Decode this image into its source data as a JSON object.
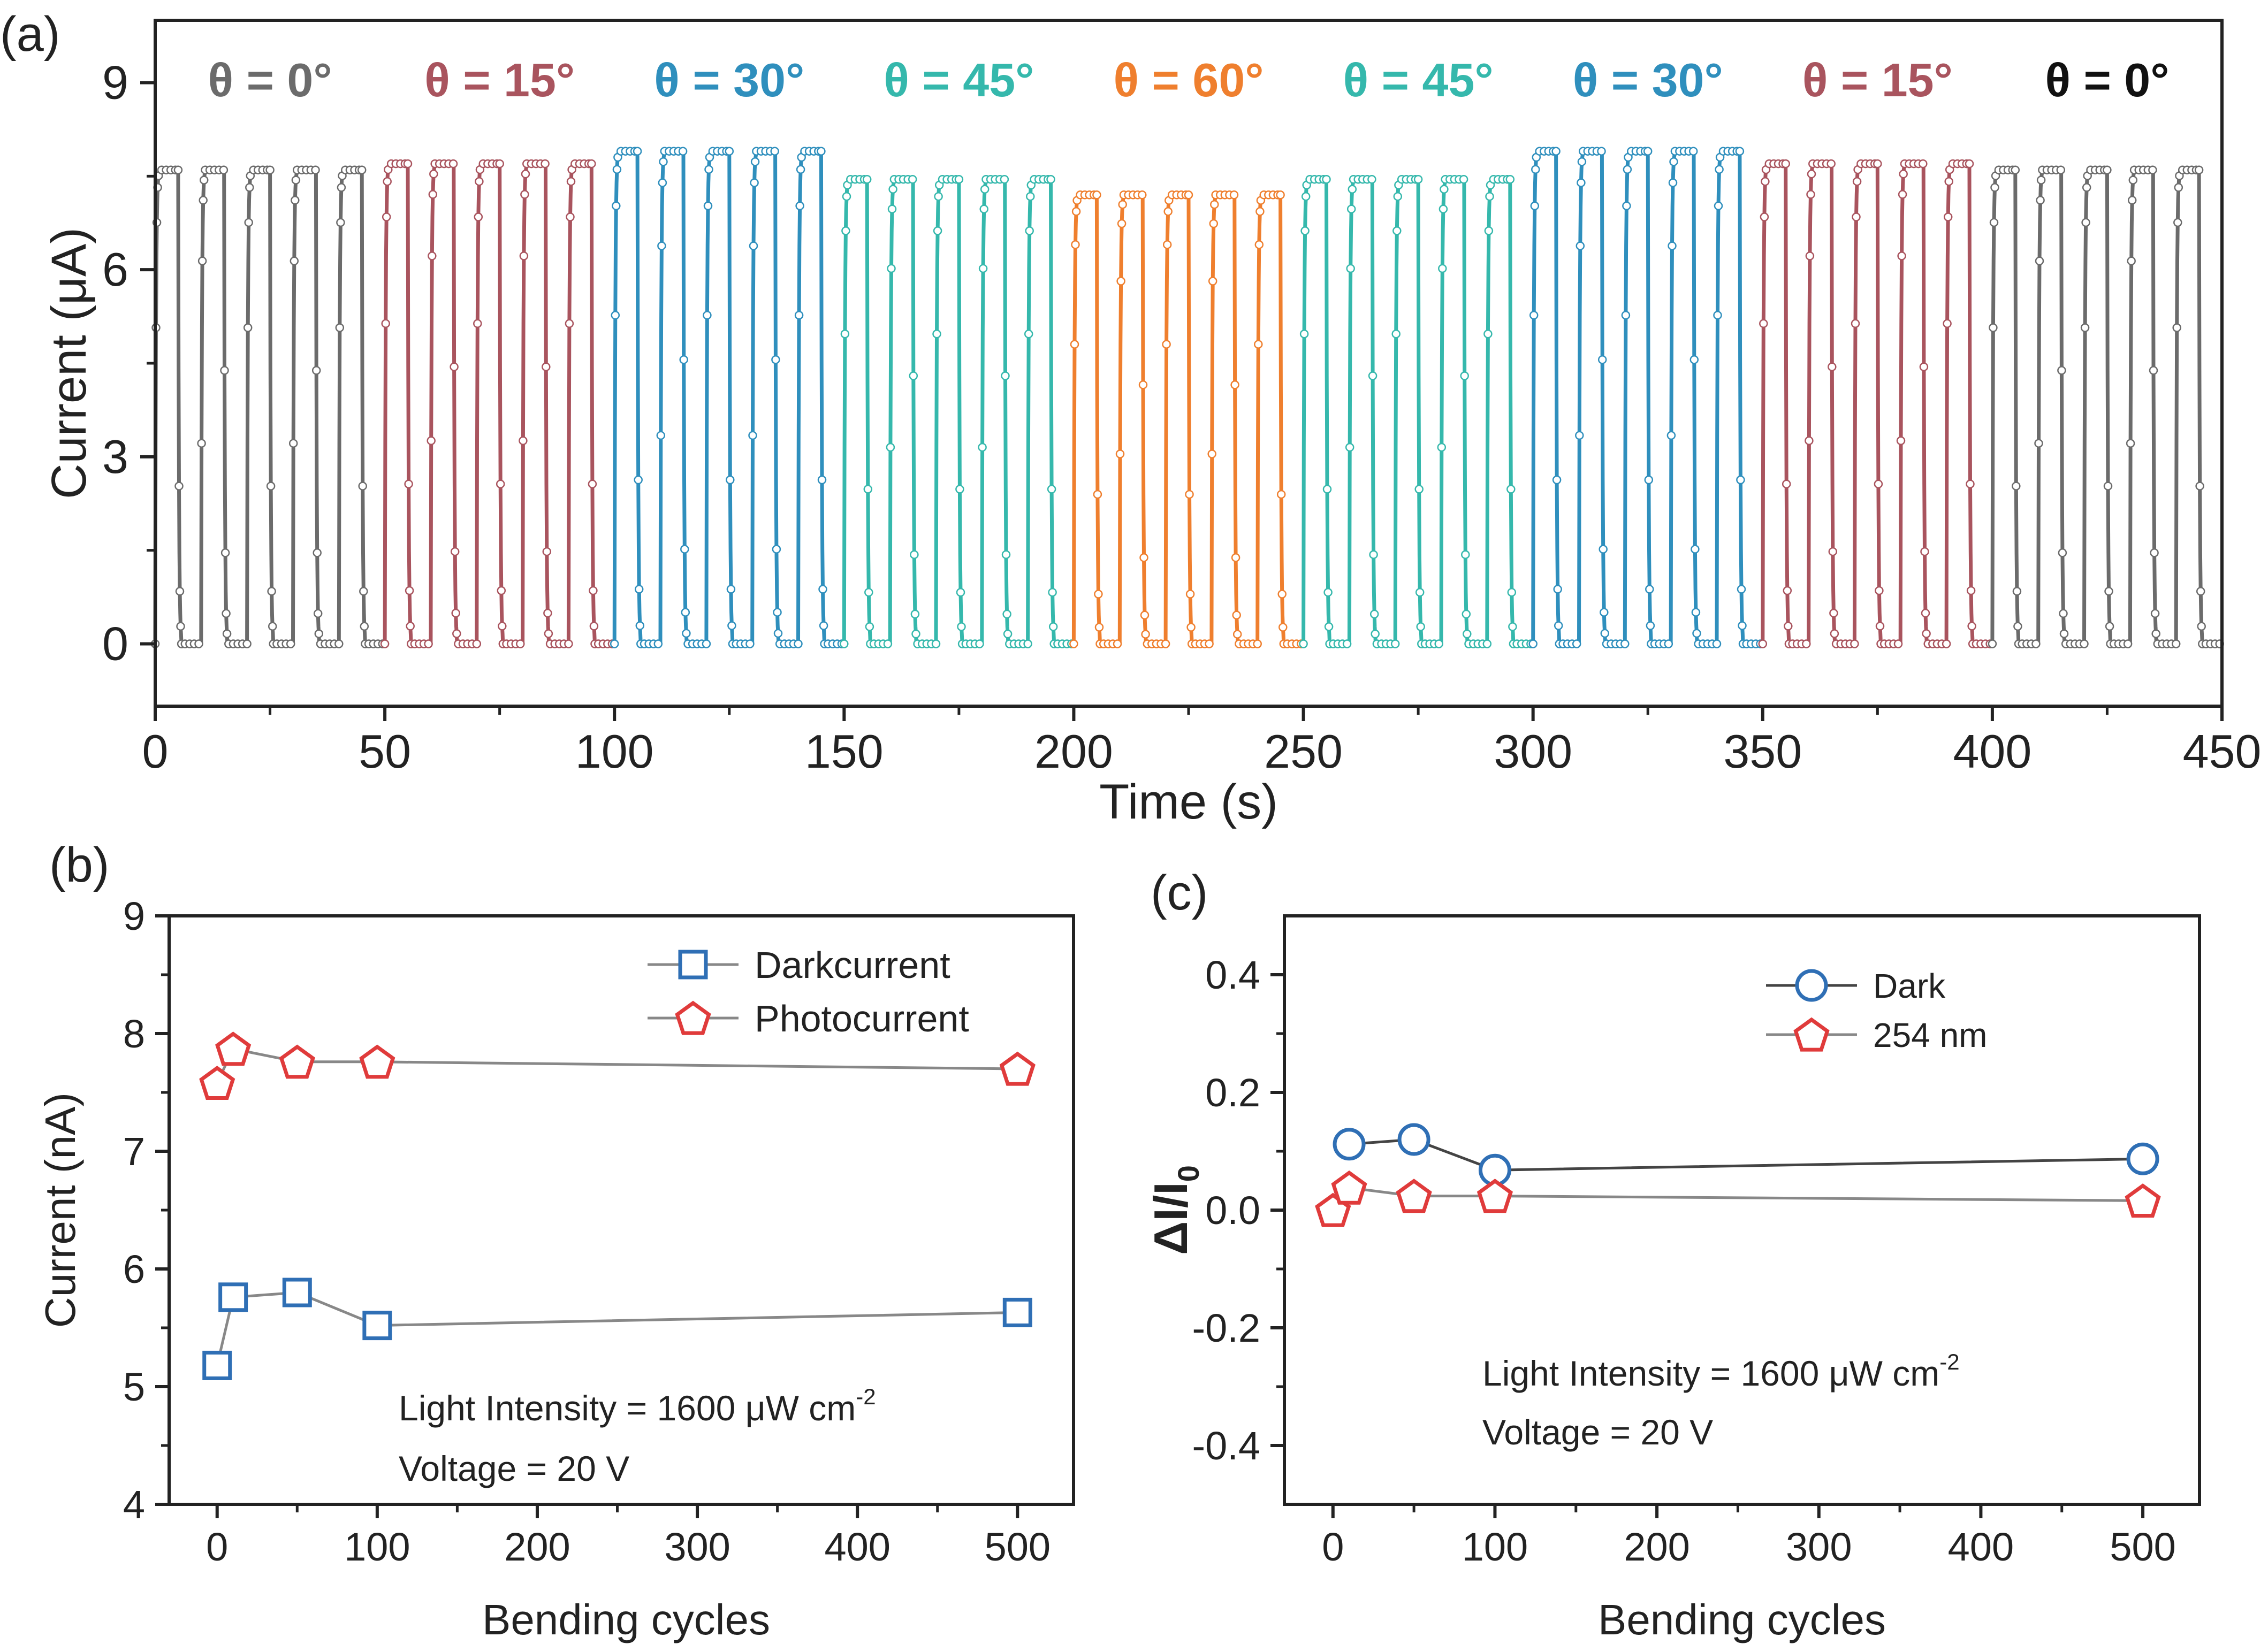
{
  "chart_data": [
    {
      "panel_label": "(a)",
      "type": "line",
      "xlabel": "Time (s)",
      "ylabel": "Current (μA)",
      "xlim": [
        0,
        450
      ],
      "ylim": [
        -1,
        10
      ],
      "xticks": [
        "0",
        "50",
        "100",
        "150",
        "200",
        "250",
        "300",
        "350",
        "400",
        "450"
      ],
      "yticks": [
        "0",
        "3",
        "6",
        "9"
      ],
      "dark_level": 0,
      "cycle_period_s": 10,
      "light_on_s": 5,
      "segments": [
        {
          "label": "θ = 0°",
          "t_start": 0,
          "t_end": 50,
          "on_current": 7.6,
          "color": "#6b6b6b"
        },
        {
          "label": "θ = 15°",
          "t_start": 50,
          "t_end": 100,
          "on_current": 7.7,
          "color": "#a9545e"
        },
        {
          "label": "θ = 30°",
          "t_start": 100,
          "t_end": 150,
          "on_current": 7.9,
          "color": "#2f8fbd"
        },
        {
          "label": "θ = 45°",
          "t_start": 150,
          "t_end": 200,
          "on_current": 7.45,
          "color": "#35b8ac"
        },
        {
          "label": "θ = 60°",
          "t_start": 200,
          "t_end": 250,
          "on_current": 7.2,
          "color": "#ef7f2e"
        },
        {
          "label": "θ = 45°",
          "t_start": 250,
          "t_end": 300,
          "on_current": 7.45,
          "color": "#35b8ac"
        },
        {
          "label": "θ = 30°",
          "t_start": 300,
          "t_end": 350,
          "on_current": 7.9,
          "color": "#2f8fbd"
        },
        {
          "label": "θ = 15°",
          "t_start": 350,
          "t_end": 400,
          "on_current": 7.7,
          "color": "#a9545e"
        },
        {
          "label": "θ = 0°",
          "t_start": 400,
          "t_end": 450,
          "on_current": 7.6,
          "color": "#6b6b6b"
        }
      ],
      "final_label_color": "#111111"
    },
    {
      "panel_label": "(b)",
      "type": "line",
      "xlabel": "Bending cycles",
      "ylabel": "Current (nA)",
      "xlim": [
        -30,
        535
      ],
      "ylim": [
        4,
        9
      ],
      "xticks": [
        "0",
        "100",
        "200",
        "300",
        "400",
        "500"
      ],
      "yticks": [
        "4",
        "5",
        "6",
        "7",
        "8",
        "9"
      ],
      "series": [
        {
          "name": "Darkcurrent",
          "marker": "square",
          "color": "#2f6fb5",
          "line_color": "#888888",
          "x": [
            0,
            10,
            50,
            100,
            500
          ],
          "y": [
            5.18,
            5.76,
            5.8,
            5.52,
            5.63
          ]
        },
        {
          "name": "Photocurrent",
          "marker": "pentagon",
          "color": "#e03b3b",
          "line_color": "#888888",
          "x": [
            0,
            10,
            50,
            100,
            500
          ],
          "y": [
            7.58,
            7.87,
            7.76,
            7.76,
            7.7
          ]
        }
      ],
      "annotation_line1": "Light Intensity = 1600 μW cm",
      "annotation_sup": "-2",
      "annotation_line2": "Voltage = 20 V"
    },
    {
      "panel_label": "(c)",
      "type": "line",
      "xlabel": "Bending cycles",
      "ylabel": "ΔI/I",
      "ylabel_sub": "0",
      "xlim": [
        -30,
        535
      ],
      "ylim": [
        -0.5,
        0.5
      ],
      "xticks": [
        "0",
        "100",
        "200",
        "300",
        "400",
        "500"
      ],
      "yticks": [
        "-0.4",
        "-0.2",
        "0.0",
        "0.2",
        "0.4"
      ],
      "series": [
        {
          "name": "Dark",
          "marker": "circle",
          "color": "#2f6fb5",
          "line_color": "#444444",
          "x": [
            10,
            50,
            100,
            500
          ],
          "y": [
            0.112,
            0.12,
            0.068,
            0.087
          ]
        },
        {
          "name": "254 nm",
          "marker": "pentagon",
          "color": "#e03b3b",
          "line_color": "#888888",
          "x": [
            0,
            10,
            50,
            100,
            500
          ],
          "y": [
            0.0,
            0.038,
            0.024,
            0.024,
            0.016
          ]
        }
      ],
      "annotation_line1": "Light Intensity = 1600 μW cm",
      "annotation_sup": "-2",
      "annotation_line2": "Voltage = 20 V"
    }
  ]
}
